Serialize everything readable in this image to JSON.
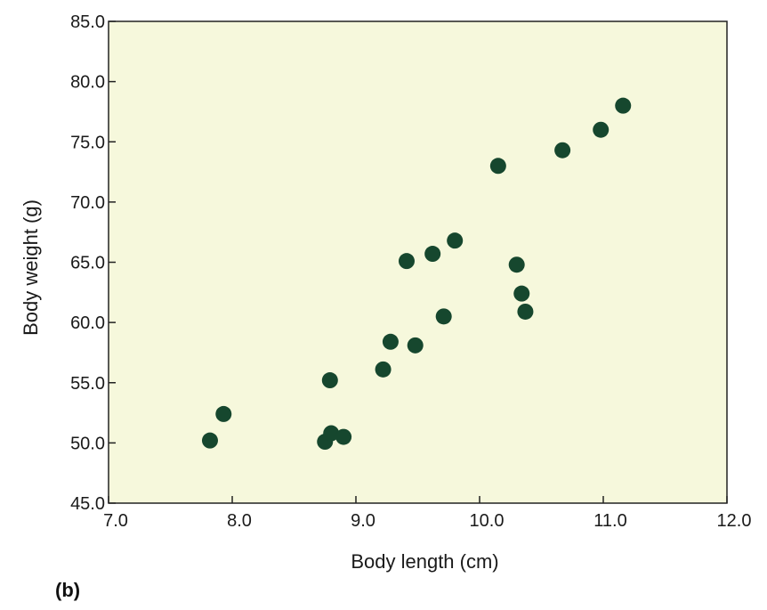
{
  "colors": {
    "plot_background": "#f6f8dc",
    "point_fill": "#16472e",
    "axis_color": "#222222",
    "text_color": "#1a1a1a"
  },
  "chart_data": {
    "type": "scatter",
    "xlabel": "Body length (cm)",
    "ylabel": "Body weight (g)",
    "xlim": [
      7.0,
      12.0
    ],
    "ylim": [
      45.0,
      85.0
    ],
    "x_ticks": [
      "7.0",
      "8.0",
      "9.0",
      "10.0",
      "11.0",
      "12.0"
    ],
    "y_ticks": [
      "45.0",
      "50.0",
      "55.0",
      "60.0",
      "65.0",
      "70.0",
      "75.0",
      "80.0",
      "85.0"
    ],
    "grid": false,
    "points": [
      {
        "x": 7.82,
        "y": 50.2
      },
      {
        "x": 7.93,
        "y": 52.4
      },
      {
        "x": 8.75,
        "y": 50.1
      },
      {
        "x": 8.8,
        "y": 50.8
      },
      {
        "x": 8.79,
        "y": 55.2
      },
      {
        "x": 8.9,
        "y": 50.5
      },
      {
        "x": 9.22,
        "y": 56.1
      },
      {
        "x": 9.28,
        "y": 58.4
      },
      {
        "x": 9.41,
        "y": 65.1
      },
      {
        "x": 9.48,
        "y": 58.1
      },
      {
        "x": 9.62,
        "y": 65.7
      },
      {
        "x": 9.71,
        "y": 60.5
      },
      {
        "x": 9.8,
        "y": 66.8
      },
      {
        "x": 10.15,
        "y": 73.0
      },
      {
        "x": 10.3,
        "y": 64.8
      },
      {
        "x": 10.34,
        "y": 62.4
      },
      {
        "x": 10.37,
        "y": 60.9
      },
      {
        "x": 10.67,
        "y": 74.3
      },
      {
        "x": 10.98,
        "y": 76.0
      },
      {
        "x": 11.16,
        "y": 78.0
      }
    ]
  },
  "panel_label": "(b)"
}
